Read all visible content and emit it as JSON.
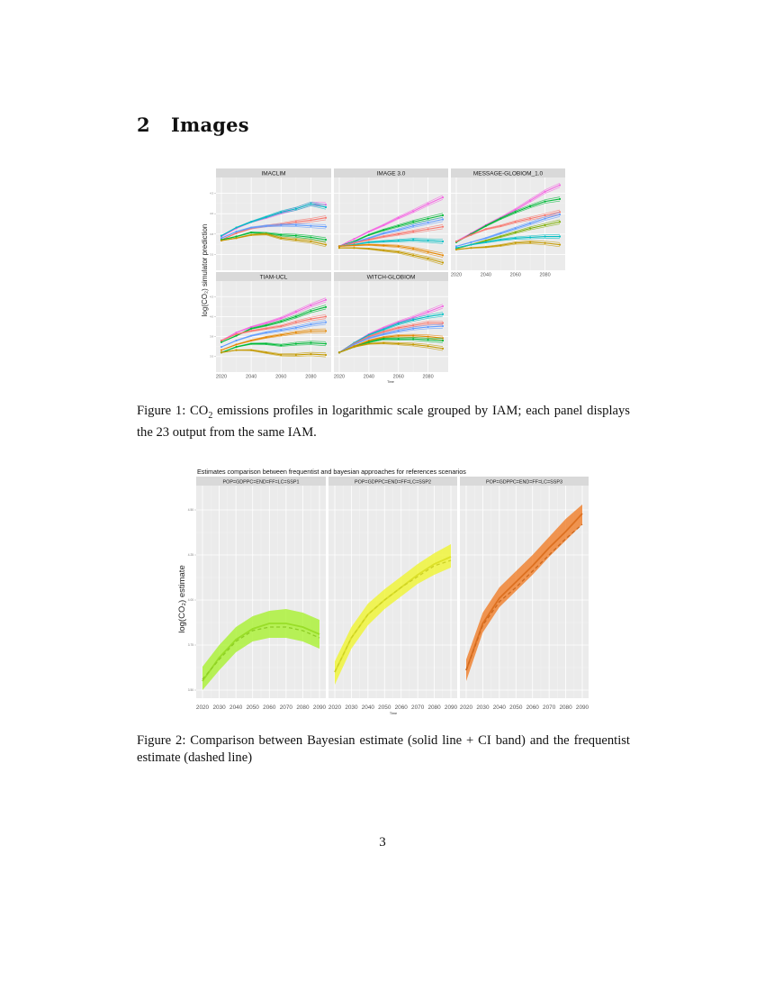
{
  "section": {
    "number": "2",
    "title": "Images"
  },
  "figure1": {
    "caption_prefix": "Figure 1: CO",
    "caption_sub": "2",
    "caption_rest": " emissions profiles in logarithmic scale grouped by IAM; each panel displays the 23 output from the same IAM.",
    "ylabel": "log(CO2) simulator prediction",
    "xlabel": "Time"
  },
  "figure2": {
    "caption": "Figure 2: Comparison between Bayesian estimate (solid line + CI band) and the frequentist estimate (dashed line)",
    "title": "Estimates comparison between frequentist and bayesian approaches for references scenarios",
    "ylabel": "log(CO2) estimate",
    "xlabel": "Time"
  },
  "page": {
    "number": "3"
  },
  "colors": {
    "panel_bg": "#ebebeb",
    "strip_bg": "#d9d9d9",
    "grid": "#ffffff",
    "ssp1": "#a6f12b",
    "ssp2": "#f0f52b",
    "ssp3": "#f07a23"
  },
  "chart_data": [
    {
      "type": "line",
      "title": "",
      "xlabel": "Time",
      "ylabel": "log(CO2) simulator prediction",
      "facets": [
        "IMACLIM",
        "IMAGE 3.0",
        "MESSAGE-GLOBIOM_1.0",
        "TIAM-UCL",
        "WITCH-GLOBIOM"
      ],
      "x": [
        2020,
        2030,
        2040,
        2050,
        2060,
        2070,
        2080,
        2090
      ],
      "x_ticks": [
        2020,
        2040,
        2060,
        2080
      ],
      "y_ticks_approx": [
        3.5,
        3.75,
        4.0,
        4.25
      ],
      "grid": true,
      "legend": "none",
      "note": "Each facet shows 23 scenario trajectories (colored lines with point markers); values are approximate reads of representative lines.",
      "panels": [
        {
          "name": "IMACLIM",
          "series": [
            {
              "name": "top-pink",
              "color": "#f564e3",
              "values": [
                3.72,
                3.82,
                3.9,
                3.95,
                4.01,
                4.06,
                4.12,
                4.11
              ]
            },
            {
              "name": "top-teal",
              "color": "#00bfc4",
              "values": [
                3.73,
                3.83,
                3.9,
                3.96,
                4.02,
                4.06,
                4.12,
                4.08
              ]
            },
            {
              "name": "mid-pink",
              "color": "#f8766d",
              "values": [
                3.68,
                3.76,
                3.82,
                3.85,
                3.87,
                3.9,
                3.92,
                3.95
              ]
            },
            {
              "name": "mid-blue",
              "color": "#619cff",
              "values": [
                3.7,
                3.78,
                3.83,
                3.85,
                3.86,
                3.86,
                3.85,
                3.84
              ]
            },
            {
              "name": "green",
              "color": "#00ba38",
              "values": [
                3.68,
                3.72,
                3.77,
                3.76,
                3.74,
                3.73,
                3.71,
                3.68
              ]
            },
            {
              "name": "orange-low",
              "color": "#c49a00",
              "values": [
                3.67,
                3.7,
                3.74,
                3.75,
                3.7,
                3.68,
                3.66,
                3.62
              ]
            }
          ]
        },
        {
          "name": "IMAGE 3.0",
          "series": [
            {
              "name": "top-pink",
              "color": "#f564e3",
              "values": [
                3.6,
                3.69,
                3.78,
                3.86,
                3.95,
                4.03,
                4.12,
                4.2
              ]
            },
            {
              "name": "green-high",
              "color": "#00ba38",
              "values": [
                3.6,
                3.66,
                3.74,
                3.8,
                3.85,
                3.9,
                3.94,
                3.98
              ]
            },
            {
              "name": "blue",
              "color": "#619cff",
              "values": [
                3.6,
                3.65,
                3.7,
                3.76,
                3.8,
                3.85,
                3.89,
                3.93
              ]
            },
            {
              "name": "mid-red",
              "color": "#f8766d",
              "values": [
                3.6,
                3.64,
                3.68,
                3.72,
                3.75,
                3.78,
                3.81,
                3.84
              ]
            },
            {
              "name": "teal",
              "color": "#00bfc4",
              "values": [
                3.6,
                3.62,
                3.65,
                3.66,
                3.67,
                3.68,
                3.67,
                3.66
              ]
            },
            {
              "name": "orange",
              "color": "#e58700",
              "values": [
                3.6,
                3.61,
                3.62,
                3.61,
                3.6,
                3.57,
                3.53,
                3.49
              ]
            },
            {
              "name": "orange-low",
              "color": "#c49a00",
              "values": [
                3.58,
                3.58,
                3.57,
                3.55,
                3.53,
                3.49,
                3.45,
                3.4
              ]
            }
          ]
        },
        {
          "name": "MESSAGE-GLOBIOM_1.0",
          "series": [
            {
              "name": "top-pink",
              "color": "#f564e3",
              "values": [
                3.66,
                3.76,
                3.86,
                3.95,
                4.05,
                4.16,
                4.27,
                4.35
              ]
            },
            {
              "name": "green-high",
              "color": "#00ba38",
              "values": [
                3.65,
                3.75,
                3.85,
                3.94,
                4.02,
                4.09,
                4.15,
                4.18
              ]
            },
            {
              "name": "pink-mid",
              "color": "#f8766d",
              "values": [
                3.66,
                3.74,
                3.81,
                3.85,
                3.9,
                3.94,
                3.98,
                4.02
              ]
            },
            {
              "name": "blue",
              "color": "#619cff",
              "values": [
                3.6,
                3.65,
                3.7,
                3.76,
                3.82,
                3.88,
                3.94,
                3.99
              ]
            },
            {
              "name": "green",
              "color": "#7cae00",
              "values": [
                3.57,
                3.62,
                3.67,
                3.72,
                3.77,
                3.82,
                3.86,
                3.9
              ]
            },
            {
              "name": "teal-low",
              "color": "#00bfc4",
              "values": [
                3.58,
                3.62,
                3.65,
                3.68,
                3.7,
                3.71,
                3.72,
                3.72
              ]
            },
            {
              "name": "orange-low",
              "color": "#c49a00",
              "values": [
                3.56,
                3.58,
                3.59,
                3.61,
                3.64,
                3.65,
                3.64,
                3.62
              ]
            }
          ]
        },
        {
          "name": "TIAM-UCL",
          "series": [
            {
              "name": "top-pink",
              "color": "#f564e3",
              "values": [
                3.7,
                3.8,
                3.87,
                3.92,
                3.98,
                4.06,
                4.14,
                4.21
              ]
            },
            {
              "name": "green-high",
              "color": "#00ba38",
              "values": [
                3.68,
                3.76,
                3.85,
                3.89,
                3.94,
                4.0,
                4.07,
                4.12
              ]
            },
            {
              "name": "pink-mid",
              "color": "#f8766d",
              "values": [
                3.7,
                3.78,
                3.82,
                3.85,
                3.88,
                3.93,
                3.97,
                4.0
              ]
            },
            {
              "name": "blue",
              "color": "#619cff",
              "values": [
                3.62,
                3.7,
                3.76,
                3.8,
                3.83,
                3.86,
                3.9,
                3.93
              ]
            },
            {
              "name": "orange",
              "color": "#e58700",
              "values": [
                3.58,
                3.65,
                3.7,
                3.74,
                3.77,
                3.8,
                3.82,
                3.82
              ]
            },
            {
              "name": "green-low",
              "color": "#00ba38",
              "values": [
                3.55,
                3.62,
                3.66,
                3.66,
                3.64,
                3.66,
                3.67,
                3.66
              ]
            },
            {
              "name": "orange-low",
              "color": "#c49a00",
              "values": [
                3.55,
                3.58,
                3.58,
                3.55,
                3.52,
                3.52,
                3.53,
                3.52
              ]
            }
          ]
        },
        {
          "name": "WITCH-GLOBIOM",
          "series": [
            {
              "name": "top-pink",
              "color": "#f564e3",
              "values": [
                3.55,
                3.67,
                3.78,
                3.86,
                3.93,
                3.99,
                4.06,
                4.13
              ]
            },
            {
              "name": "teal-high",
              "color": "#00bfc4",
              "values": [
                3.55,
                3.67,
                3.77,
                3.84,
                3.91,
                3.96,
                4.0,
                4.03
              ]
            },
            {
              "name": "pink-mid",
              "color": "#f8766d",
              "values": [
                3.55,
                3.66,
                3.75,
                3.81,
                3.86,
                3.89,
                3.92,
                3.92
              ]
            },
            {
              "name": "blue",
              "color": "#619cff",
              "values": [
                3.55,
                3.65,
                3.73,
                3.78,
                3.82,
                3.85,
                3.87,
                3.88
              ]
            },
            {
              "name": "orange",
              "color": "#e58700",
              "values": [
                3.55,
                3.63,
                3.7,
                3.74,
                3.76,
                3.76,
                3.75,
                3.73
              ]
            },
            {
              "name": "green",
              "color": "#00ba38",
              "values": [
                3.55,
                3.62,
                3.68,
                3.72,
                3.72,
                3.72,
                3.71,
                3.7
              ]
            },
            {
              "name": "orange-low",
              "color": "#c49a00",
              "values": [
                3.55,
                3.62,
                3.66,
                3.67,
                3.66,
                3.65,
                3.63,
                3.6
              ]
            }
          ]
        }
      ]
    },
    {
      "type": "line",
      "title": "Estimates comparison between frequentist and bayesian approaches for references scenarios",
      "xlabel": "Time",
      "ylabel": "log(CO2) estimate",
      "facets": [
        "POP=GDPPC=END=FF=LC=SSP1",
        "POP=GDPPC=END=FF=LC=SSP2",
        "POP=GDPPC=END=FF=LC=SSP3"
      ],
      "x": [
        2020,
        2030,
        2040,
        2050,
        2060,
        2070,
        2080,
        2090
      ],
      "x_ticks": [
        2020,
        2030,
        2040,
        2050,
        2060,
        2070,
        2080,
        2090
      ],
      "y_ticks": [
        3.5,
        3.75,
        4.0,
        4.25,
        4.5
      ],
      "ylim": [
        3.48,
        4.5
      ],
      "grid": true,
      "legend": "none",
      "panels": [
        {
          "name": "POP=GDPPC=END=FF=LC=SSP1",
          "color": "#a6f12b",
          "bayesian": [
            3.55,
            3.68,
            3.78,
            3.84,
            3.87,
            3.87,
            3.85,
            3.81
          ],
          "ci_lower": [
            3.5,
            3.61,
            3.71,
            3.77,
            3.79,
            3.79,
            3.77,
            3.73
          ],
          "ci_upper": [
            3.63,
            3.75,
            3.85,
            3.91,
            3.94,
            3.95,
            3.93,
            3.89
          ],
          "frequentist": [
            3.56,
            3.67,
            3.77,
            3.83,
            3.85,
            3.85,
            3.83,
            3.79
          ]
        },
        {
          "name": "POP=GDPPC=END=FF=LC=SSP2",
          "color": "#f0f52b",
          "bayesian": [
            3.6,
            3.79,
            3.92,
            4.0,
            4.07,
            4.14,
            4.2,
            4.24
          ],
          "ci_lower": [
            3.53,
            3.73,
            3.86,
            3.95,
            4.02,
            4.09,
            4.14,
            4.18
          ],
          "ci_upper": [
            3.66,
            3.85,
            3.98,
            4.06,
            4.13,
            4.2,
            4.26,
            4.31
          ],
          "frequentist": [
            3.6,
            3.79,
            3.92,
            4.0,
            4.07,
            4.13,
            4.19,
            4.22
          ]
        },
        {
          "name": "POP=GDPPC=END=FF=LC=SSP3",
          "color": "#f07a23",
          "bayesian": [
            3.61,
            3.87,
            4.01,
            4.1,
            4.19,
            4.29,
            4.38,
            4.48
          ],
          "ci_lower": [
            3.55,
            3.82,
            3.96,
            4.05,
            4.14,
            4.24,
            4.33,
            4.42
          ],
          "ci_upper": [
            3.67,
            3.93,
            4.07,
            4.16,
            4.25,
            4.35,
            4.45,
            4.53
          ],
          "frequentist": [
            3.61,
            3.86,
            3.99,
            4.07,
            4.16,
            4.25,
            4.34,
            4.42
          ]
        }
      ]
    }
  ]
}
